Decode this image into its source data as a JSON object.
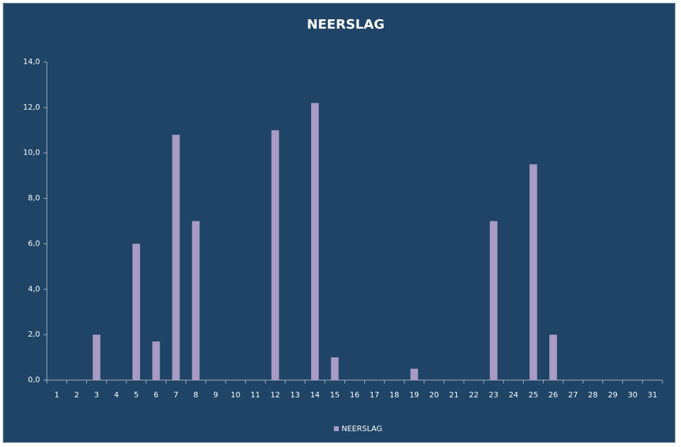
{
  "chart_data": {
    "type": "bar",
    "title": "NEERSLAG",
    "categories": [
      "1",
      "2",
      "3",
      "4",
      "5",
      "6",
      "7",
      "8",
      "9",
      "10",
      "11",
      "12",
      "13",
      "14",
      "15",
      "16",
      "17",
      "18",
      "19",
      "20",
      "21",
      "22",
      "23",
      "24",
      "25",
      "26",
      "27",
      "28",
      "29",
      "30",
      "31"
    ],
    "series": [
      {
        "name": "NEERSLAG",
        "color": "#a99bc4",
        "values": [
          0,
          0,
          2.0,
          0,
          6.0,
          1.7,
          10.8,
          7.0,
          0,
          0,
          0,
          11.0,
          0,
          12.2,
          1.0,
          0,
          0,
          0,
          0.5,
          0,
          0,
          0,
          7.0,
          0,
          9.5,
          2.0,
          0,
          0,
          0,
          0,
          0
        ]
      }
    ],
    "ylim": [
      0,
      14
    ],
    "yticks": [
      {
        "value": 0,
        "label": "0,0"
      },
      {
        "value": 2,
        "label": "2,0"
      },
      {
        "value": 4,
        "label": "4,0"
      },
      {
        "value": 6,
        "label": "6,0"
      },
      {
        "value": 8,
        "label": "8,0"
      },
      {
        "value": 10,
        "label": "10,0"
      },
      {
        "value": 12,
        "label": "12,0"
      },
      {
        "value": 14,
        "label": "14,0"
      }
    ],
    "grid": false,
    "legend": "bottom"
  }
}
